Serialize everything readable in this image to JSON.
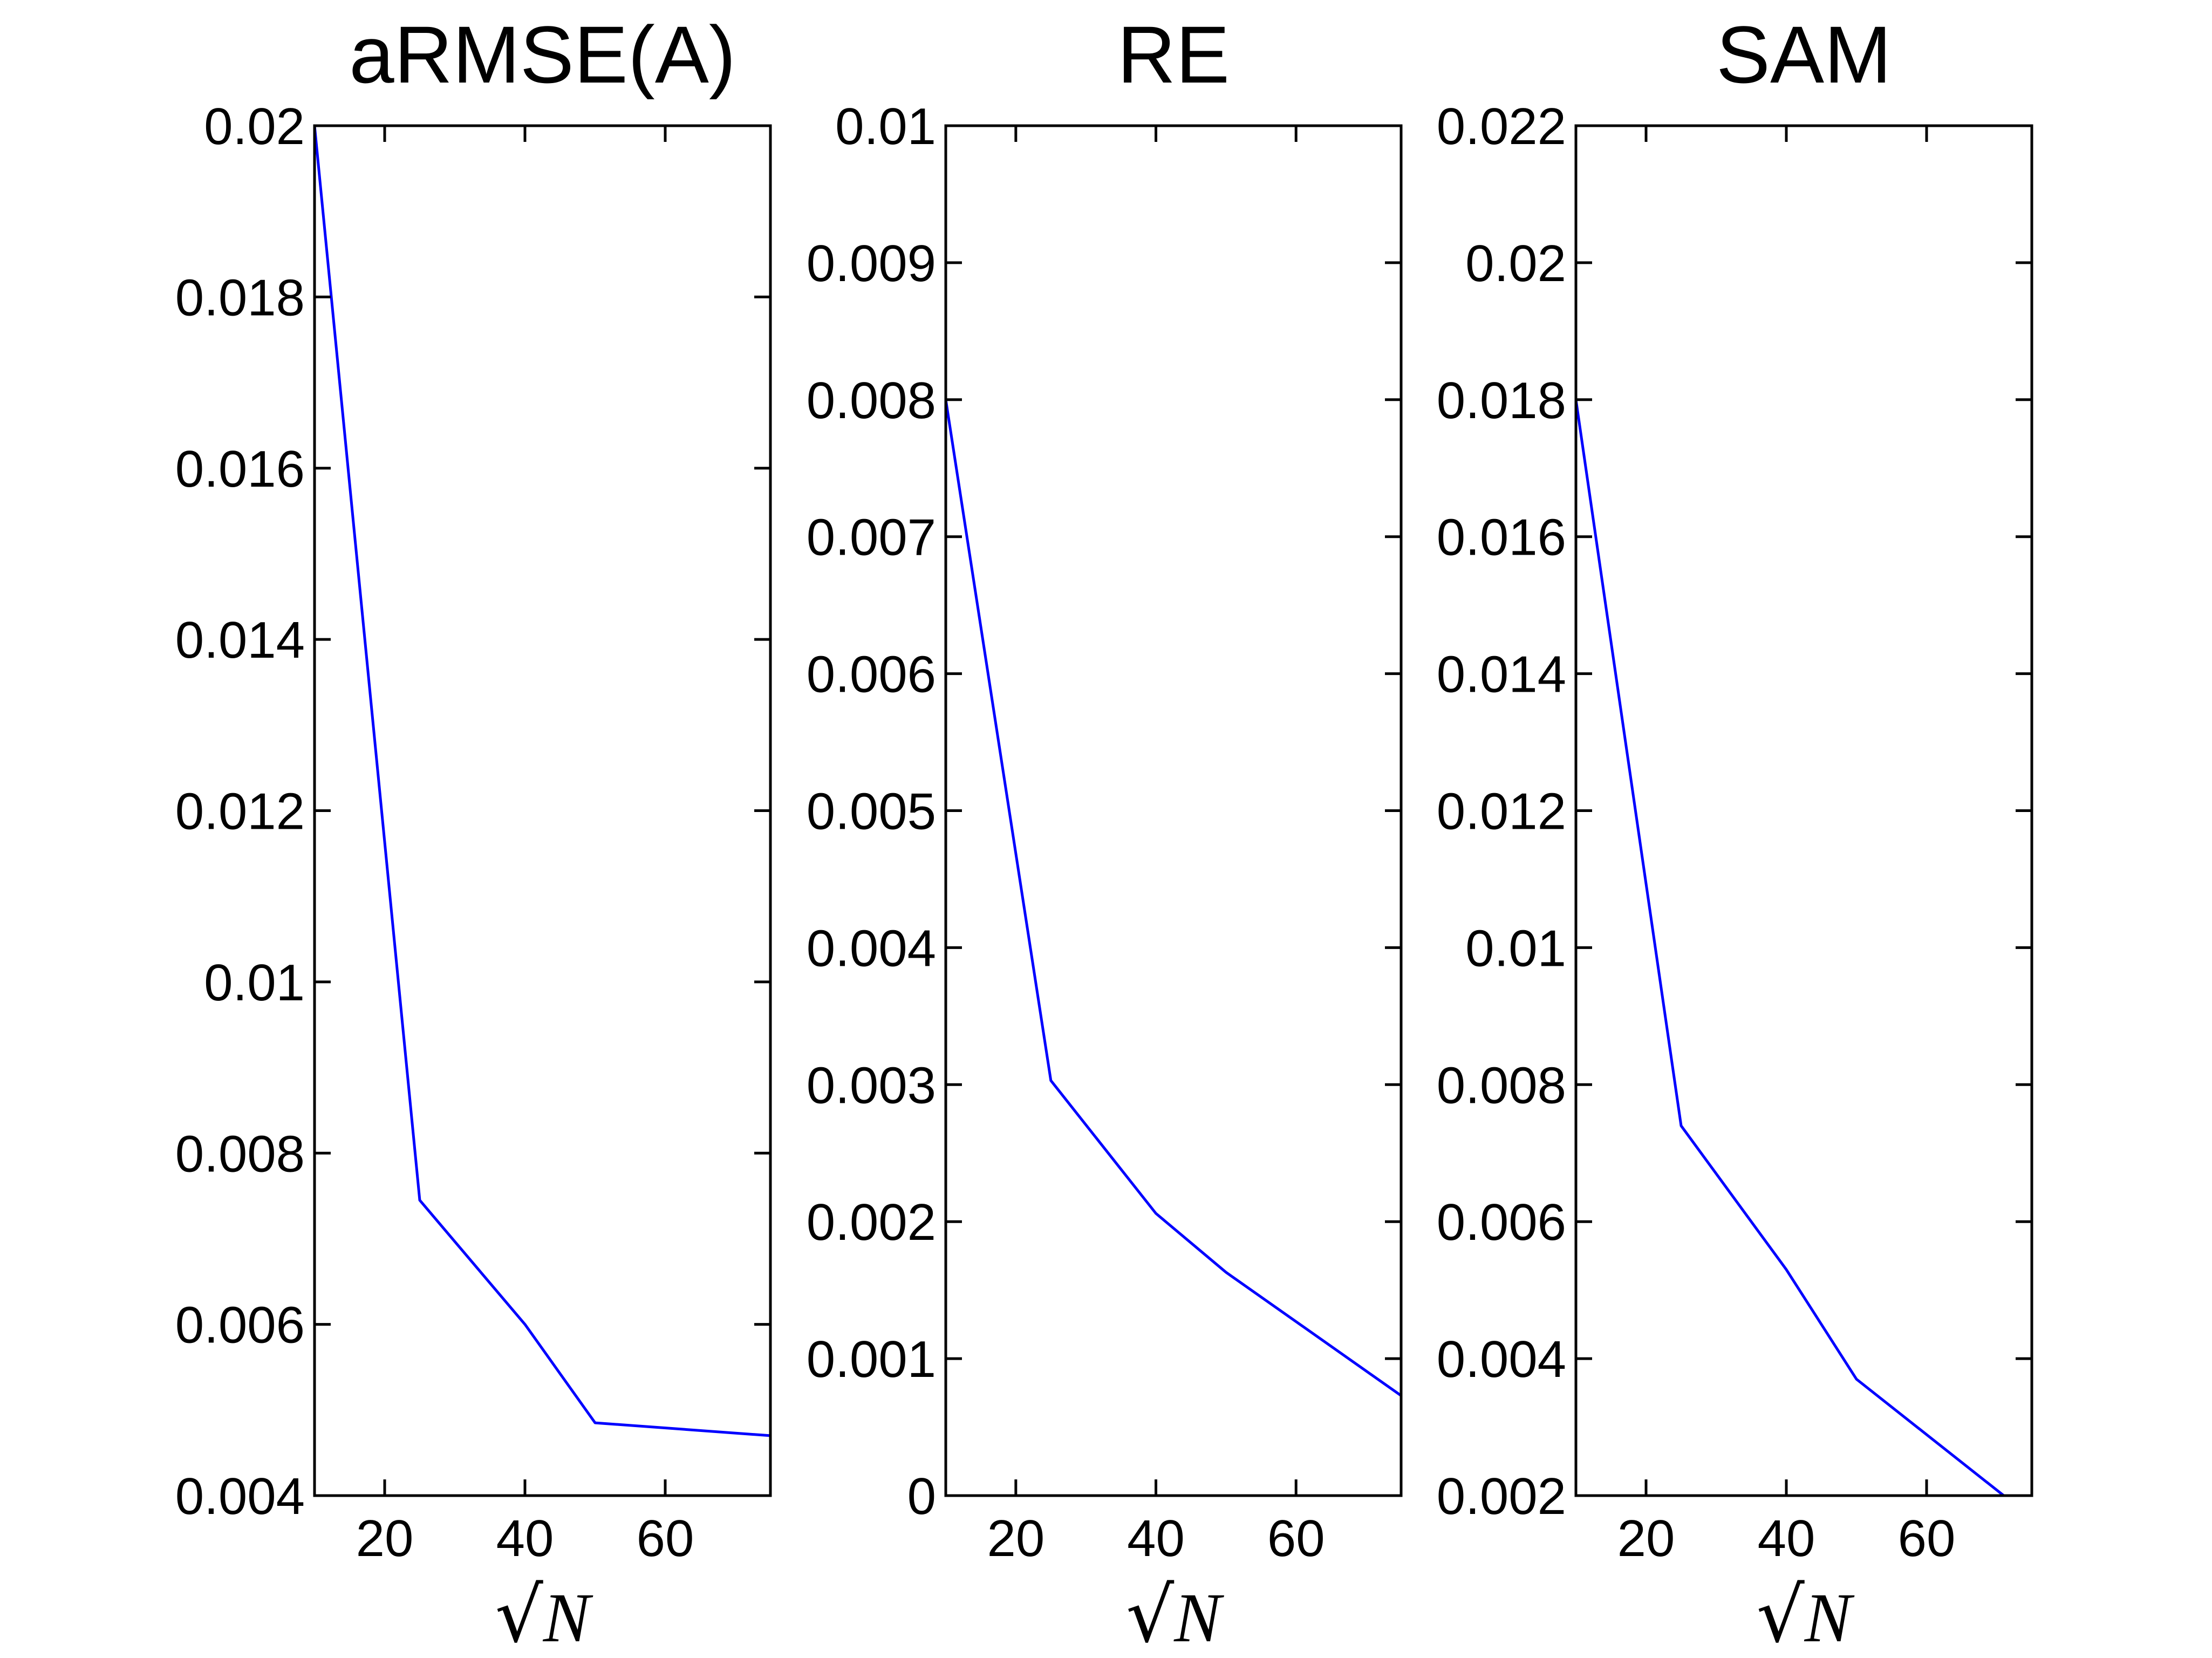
{
  "chart_data": [
    {
      "type": "line",
      "title": "aRMSE(A)",
      "xlabel": "√N",
      "xlabel_parts": {
        "radical": "√",
        "var": "N"
      },
      "ylabel": "",
      "xlim": [
        10,
        75
      ],
      "ylim": [
        0.004,
        0.02
      ],
      "xticks": [
        20,
        40,
        60
      ],
      "xtick_labels": [
        "20",
        "40",
        "60"
      ],
      "yticks": [
        0.004,
        0.006,
        0.008,
        0.01,
        0.012,
        0.014,
        0.016,
        0.018,
        0.02
      ],
      "ytick_labels": [
        "0.004",
        "0.006",
        "0.008",
        "0.01",
        "0.012",
        "0.014",
        "0.016",
        "0.018",
        "0.02"
      ],
      "grid": false,
      "series": [
        {
          "name": "aRMSE(A)",
          "color": "#0000ff",
          "x": [
            10,
            25,
            40,
            50,
            75
          ],
          "y": [
            0.02,
            0.00745,
            0.006,
            0.00485,
            0.0047
          ]
        }
      ]
    },
    {
      "type": "line",
      "title": "RE",
      "xlabel": "√N",
      "xlabel_parts": {
        "radical": "√",
        "var": "N"
      },
      "ylabel": "",
      "xlim": [
        10,
        75
      ],
      "ylim": [
        0,
        0.01
      ],
      "xticks": [
        20,
        40,
        60
      ],
      "xtick_labels": [
        "20",
        "40",
        "60"
      ],
      "yticks": [
        0,
        0.001,
        0.002,
        0.003,
        0.004,
        0.005,
        0.006,
        0.007,
        0.008,
        0.009,
        0.01
      ],
      "ytick_labels": [
        "0",
        "0.001",
        "0.002",
        "0.003",
        "0.004",
        "0.005",
        "0.006",
        "0.007",
        "0.008",
        "0.009",
        "0.01"
      ],
      "grid": false,
      "series": [
        {
          "name": "RE",
          "color": "#0000ff",
          "x": [
            10,
            25,
            40,
            50,
            75
          ],
          "y": [
            0.008,
            0.00303,
            0.00206,
            0.00163,
            0.00073
          ]
        }
      ]
    },
    {
      "type": "line",
      "title": "SAM",
      "xlabel": "√N",
      "xlabel_parts": {
        "radical": "√",
        "var": "N"
      },
      "ylabel": "",
      "xlim": [
        10,
        75
      ],
      "ylim": [
        0.002,
        0.022
      ],
      "xticks": [
        20,
        40,
        60
      ],
      "xtick_labels": [
        "20",
        "40",
        "60"
      ],
      "yticks": [
        0.002,
        0.004,
        0.006,
        0.008,
        0.01,
        0.012,
        0.014,
        0.016,
        0.018,
        0.02,
        0.022
      ],
      "ytick_labels": [
        "0.002",
        "0.004",
        "0.006",
        "0.008",
        "0.01",
        "0.012",
        "0.014",
        "0.016",
        "0.018",
        "0.02",
        "0.022"
      ],
      "grid": false,
      "series": [
        {
          "name": "SAM",
          "color": "#0000ff",
          "x": [
            10,
            25,
            40,
            50,
            71
          ],
          "y": [
            0.018,
            0.0074,
            0.0053,
            0.0037,
            0.002
          ]
        }
      ]
    }
  ]
}
